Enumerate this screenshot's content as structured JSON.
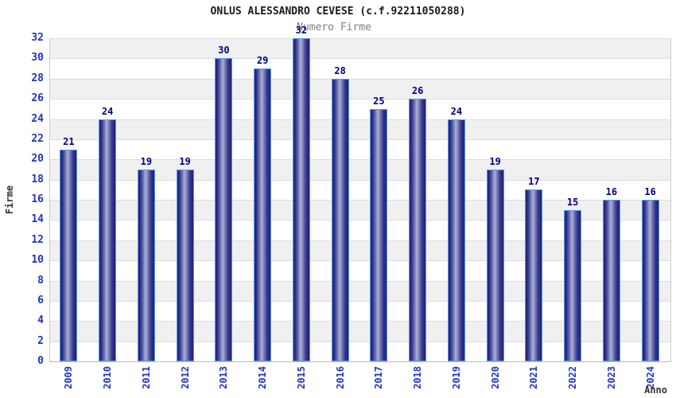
{
  "chart_data": {
    "type": "bar",
    "title": "ONLUS ALESSANDRO CEVESE (c.f.92211050288)",
    "subtitle": "Numero Firme",
    "xlabel": "Anno",
    "ylabel": "Firme",
    "categories": [
      "2009",
      "2010",
      "2011",
      "2012",
      "2013",
      "2014",
      "2015",
      "2016",
      "2017",
      "2018",
      "2019",
      "2020",
      "2021",
      "2022",
      "2023",
      "2024"
    ],
    "values": [
      21,
      24,
      19,
      19,
      30,
      29,
      32,
      28,
      25,
      26,
      24,
      19,
      17,
      15,
      16,
      16
    ],
    "ylim": [
      0,
      32
    ],
    "ytick_step": 2,
    "grid": true,
    "legend_position": "top-center",
    "colors": {
      "bar_edge": "#5599ee",
      "bar_dark": "#23237c",
      "bar_light": "#aab0d8",
      "value_label": "#00008b",
      "tick_label": "#2233cc",
      "band_gray": "#f0f0f0",
      "band_white": "#ffffff",
      "gridline": "#dcdcdc",
      "title": "#1a1a1a",
      "subtitle": "#808080",
      "axis_title": "#333333"
    }
  }
}
